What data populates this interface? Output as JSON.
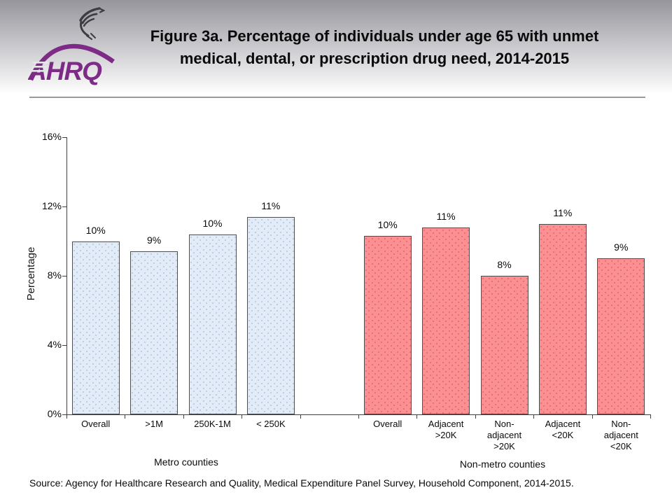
{
  "header": {
    "title_line1": "Figure 3a. Percentage of individuals under age 65 with unmet",
    "title_line2": "medical, dental, or prescription drug need, 2014-2015",
    "logo_text": "AHRQ"
  },
  "footer": {
    "source": "Source: Agency for Healthcare Research and Quality, Medical Expenditure Panel Survey, Household Component, 2014-2015."
  },
  "colors": {
    "metro_bar_fill": "#e3ebf6",
    "metro_bar_dots": "#aecbeb",
    "nonmetro_bar_fill": "#fb9092",
    "nonmetro_bar_dots": "#ee686b",
    "bar_border": "#4d4d4d",
    "axis": "#404040",
    "logo_purple": "#7d2b87",
    "eagle_gray": "#3c3c41"
  },
  "chart_data": {
    "type": "bar",
    "title": "Figure 3a. Percentage of individuals under age 65 with unmet medical, dental, or prescription drug need, 2014-2015",
    "xlabel": "",
    "ylabel": "Percentage",
    "ylim": [
      0,
      16
    ],
    "yticks": [
      "0%",
      "4%",
      "8%",
      "12%",
      "16%"
    ],
    "grid": false,
    "legend": false,
    "groups": [
      {
        "name": "Metro counties",
        "bar_color": "#e3ebf6",
        "dot_color": "#aecbeb",
        "bars": [
          {
            "category": "Overall",
            "label": "10%",
            "value": 10.0
          },
          {
            "category": ">1M",
            "label": "9%",
            "value": 9.4
          },
          {
            "category": "250K-1M",
            "label": "10%",
            "value": 10.4
          },
          {
            "category": "< 250K",
            "label": "11%",
            "value": 11.4
          }
        ]
      },
      {
        "name": "Non-metro counties",
        "bar_color": "#fb9092",
        "dot_color": "#ee686b",
        "bars": [
          {
            "category": "Overall",
            "label": "10%",
            "value": 10.3
          },
          {
            "category": "Adjacent\n>20K",
            "label": "11%",
            "value": 10.8
          },
          {
            "category": "Non-\nadjacent\n>20K",
            "label": "8%",
            "value": 8.0
          },
          {
            "category": "Adjacent\n<20K",
            "label": "11%",
            "value": 11.0
          },
          {
            "category": "Non-\nadjacent\n<20K",
            "label": "9%",
            "value": 9.0
          }
        ]
      }
    ]
  }
}
